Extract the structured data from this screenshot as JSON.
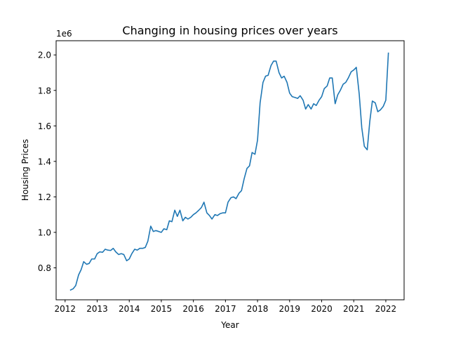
{
  "chart_data": {
    "type": "line",
    "title": "Changing in housing prices over years",
    "xlabel": "Year",
    "ylabel": "Housing Prices",
    "y_offset_label": "1e6",
    "xlim": [
      2011.72,
      2022.57
    ],
    "ylim": [
      0.62,
      2.08
    ],
    "x_ticks": [
      2012,
      2013,
      2014,
      2015,
      2016,
      2017,
      2018,
      2019,
      2020,
      2021,
      2022
    ],
    "y_ticks": [
      0.8,
      1.0,
      1.2,
      1.4,
      1.6,
      1.8,
      2.0
    ],
    "y_tick_labels": [
      "0.8",
      "1.0",
      "1.2",
      "1.4",
      "1.6",
      "1.8",
      "2.0"
    ],
    "grid": false,
    "legend": "none",
    "series": [
      {
        "color": "#1f77b4",
        "x": [
          2012.17,
          2012.25,
          2012.33,
          2012.42,
          2012.5,
          2012.58,
          2012.67,
          2012.75,
          2012.83,
          2012.92,
          2013.0,
          2013.08,
          2013.17,
          2013.25,
          2013.33,
          2013.42,
          2013.5,
          2013.58,
          2013.67,
          2013.75,
          2013.83,
          2013.92,
          2014.0,
          2014.08,
          2014.17,
          2014.25,
          2014.33,
          2014.42,
          2014.5,
          2014.58,
          2014.67,
          2014.75,
          2014.83,
          2014.92,
          2015.0,
          2015.08,
          2015.17,
          2015.25,
          2015.33,
          2015.42,
          2015.5,
          2015.58,
          2015.67,
          2015.75,
          2015.83,
          2015.92,
          2016.0,
          2016.08,
          2016.17,
          2016.25,
          2016.33,
          2016.42,
          2016.5,
          2016.58,
          2016.67,
          2016.75,
          2016.83,
          2016.92,
          2017.0,
          2017.08,
          2017.17,
          2017.25,
          2017.33,
          2017.42,
          2017.5,
          2017.58,
          2017.67,
          2017.75,
          2017.83,
          2017.92,
          2018.0,
          2018.08,
          2018.17,
          2018.25,
          2018.33,
          2018.42,
          2018.5,
          2018.58,
          2018.67,
          2018.75,
          2018.83,
          2018.92,
          2019.0,
          2019.08,
          2019.17,
          2019.25,
          2019.33,
          2019.42,
          2019.5,
          2019.58,
          2019.67,
          2019.75,
          2019.83,
          2019.92,
          2020.0,
          2020.08,
          2020.17,
          2020.25,
          2020.33,
          2020.42,
          2020.5,
          2020.58,
          2020.67,
          2020.75,
          2020.83,
          2020.92,
          2021.0,
          2021.08,
          2021.17,
          2021.25,
          2021.33,
          2021.42,
          2021.5,
          2021.58,
          2021.67,
          2021.75,
          2021.83,
          2021.92,
          2022.0,
          2022.08
        ],
        "y": [
          0.675,
          0.682,
          0.7,
          0.76,
          0.79,
          0.835,
          0.82,
          0.825,
          0.85,
          0.85,
          0.88,
          0.89,
          0.888,
          0.905,
          0.9,
          0.898,
          0.91,
          0.89,
          0.875,
          0.88,
          0.875,
          0.84,
          0.85,
          0.88,
          0.905,
          0.9,
          0.91,
          0.91,
          0.915,
          0.95,
          1.035,
          1.005,
          1.01,
          1.005,
          1.0,
          1.02,
          1.015,
          1.065,
          1.06,
          1.125,
          1.09,
          1.125,
          1.065,
          1.085,
          1.075,
          1.085,
          1.1,
          1.11,
          1.125,
          1.14,
          1.17,
          1.11,
          1.095,
          1.075,
          1.1,
          1.095,
          1.105,
          1.11,
          1.11,
          1.17,
          1.195,
          1.2,
          1.19,
          1.22,
          1.235,
          1.3,
          1.36,
          1.375,
          1.45,
          1.44,
          1.52,
          1.73,
          1.845,
          1.88,
          1.885,
          1.94,
          1.965,
          1.965,
          1.9,
          1.87,
          1.88,
          1.845,
          1.785,
          1.765,
          1.76,
          1.755,
          1.77,
          1.745,
          1.695,
          1.72,
          1.695,
          1.725,
          1.715,
          1.745,
          1.765,
          1.81,
          1.825,
          1.87,
          1.87,
          1.725,
          1.775,
          1.8,
          1.835,
          1.845,
          1.87,
          1.905,
          1.915,
          1.93,
          1.78,
          1.59,
          1.485,
          1.465,
          1.625,
          1.74,
          1.73,
          1.68,
          1.69,
          1.71,
          1.745,
          2.01
        ]
      }
    ]
  }
}
